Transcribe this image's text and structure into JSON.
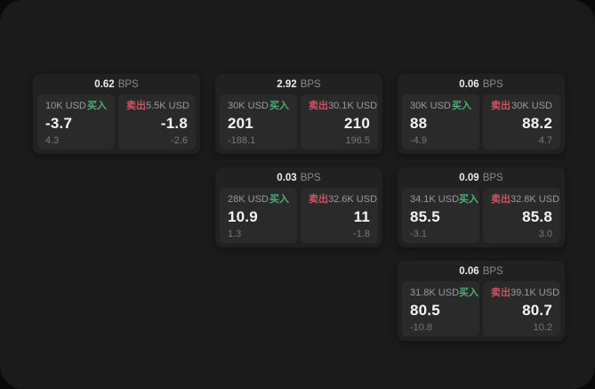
{
  "labels": {
    "bps": "BPS",
    "buy_tag": "买入",
    "sell_tag": "卖出"
  },
  "colors": {
    "outer_bg": "#0a0a0a",
    "page_bg": "#1b1b1b",
    "card_bg": "#212121",
    "panel_bg": "#2a2a2a",
    "buy_green": "#4fae73",
    "sell_red": "#d15263"
  },
  "cards": [
    {
      "col": 1,
      "row": 1,
      "bps": "0.62",
      "buy": {
        "amount": "10K USD",
        "price": "-3.7",
        "delta": "4.3"
      },
      "sell": {
        "amount": "5.5K USD",
        "price": "-1.8",
        "delta": "-2.6"
      }
    },
    {
      "col": 2,
      "row": 1,
      "bps": "2.92",
      "buy": {
        "amount": "30K USD",
        "price": "201",
        "delta": "-188.1"
      },
      "sell": {
        "amount": "30.1K USD",
        "price": "210",
        "delta": "196.5"
      }
    },
    {
      "col": 2,
      "row": 2,
      "bps": "0.03",
      "buy": {
        "amount": "28K USD",
        "price": "10.9",
        "delta": "1.3"
      },
      "sell": {
        "amount": "32.6K USD",
        "price": "11",
        "delta": "-1.8"
      }
    },
    {
      "col": 3,
      "row": 1,
      "bps": "0.06",
      "buy": {
        "amount": "30K USD",
        "price": "88",
        "delta": "-4.9"
      },
      "sell": {
        "amount": "30K USD",
        "price": "88.2",
        "delta": "4.7"
      }
    },
    {
      "col": 3,
      "row": 2,
      "bps": "0.09",
      "buy": {
        "amount": "34.1K USD",
        "price": "85.5",
        "delta": "-3.1"
      },
      "sell": {
        "amount": "32.8K USD",
        "price": "85.8",
        "delta": "3.0"
      }
    },
    {
      "col": 3,
      "row": 3,
      "bps": "0.06",
      "buy": {
        "amount": "31.8K USD",
        "price": "80.5",
        "delta": "-10.8"
      },
      "sell": {
        "amount": "39.1K USD",
        "price": "80.7",
        "delta": "10.2"
      }
    }
  ]
}
